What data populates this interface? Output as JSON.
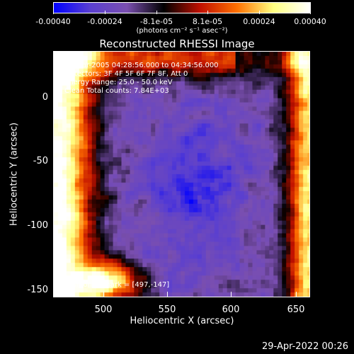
{
  "colorbar": {
    "tick_labels": [
      "-0.00040",
      "-0.00024",
      "-8.1e-05",
      "8.1e-05",
      "0.00024",
      "0.00040"
    ],
    "units": "(photons cm⁻² s⁻¹ asec⁻²)"
  },
  "plot": {
    "title": "Reconstructed RHESSI Image",
    "info_lines": [
      "18-Mar-2005 04:28:56.000 to 04:34:56.000",
      "Detectors: 3F 4F 5F 6F 7F 8F, Att 0",
      "Energy Range: 25.0 - 50.0 keV",
      "Clean    Total counts: 7.84E+03"
    ],
    "position_label": "Position of mark = [497,-147]",
    "x_ticks": [
      "500",
      "550",
      "600",
      "650"
    ],
    "y_ticks": [
      "0",
      "-50",
      "-100",
      "-150"
    ],
    "x_title": "Heliocentric X (arcsec)",
    "y_title": "Heliocentric Y (arcsec)"
  },
  "footer": "29-Apr-2022 00:26",
  "colors": {
    "colormap": [
      "#0000ff",
      "#5a3fd0",
      "#7a4fb0",
      "#000000",
      "#c01000",
      "#ff7000",
      "#ffff80",
      "#ffffff"
    ]
  }
}
